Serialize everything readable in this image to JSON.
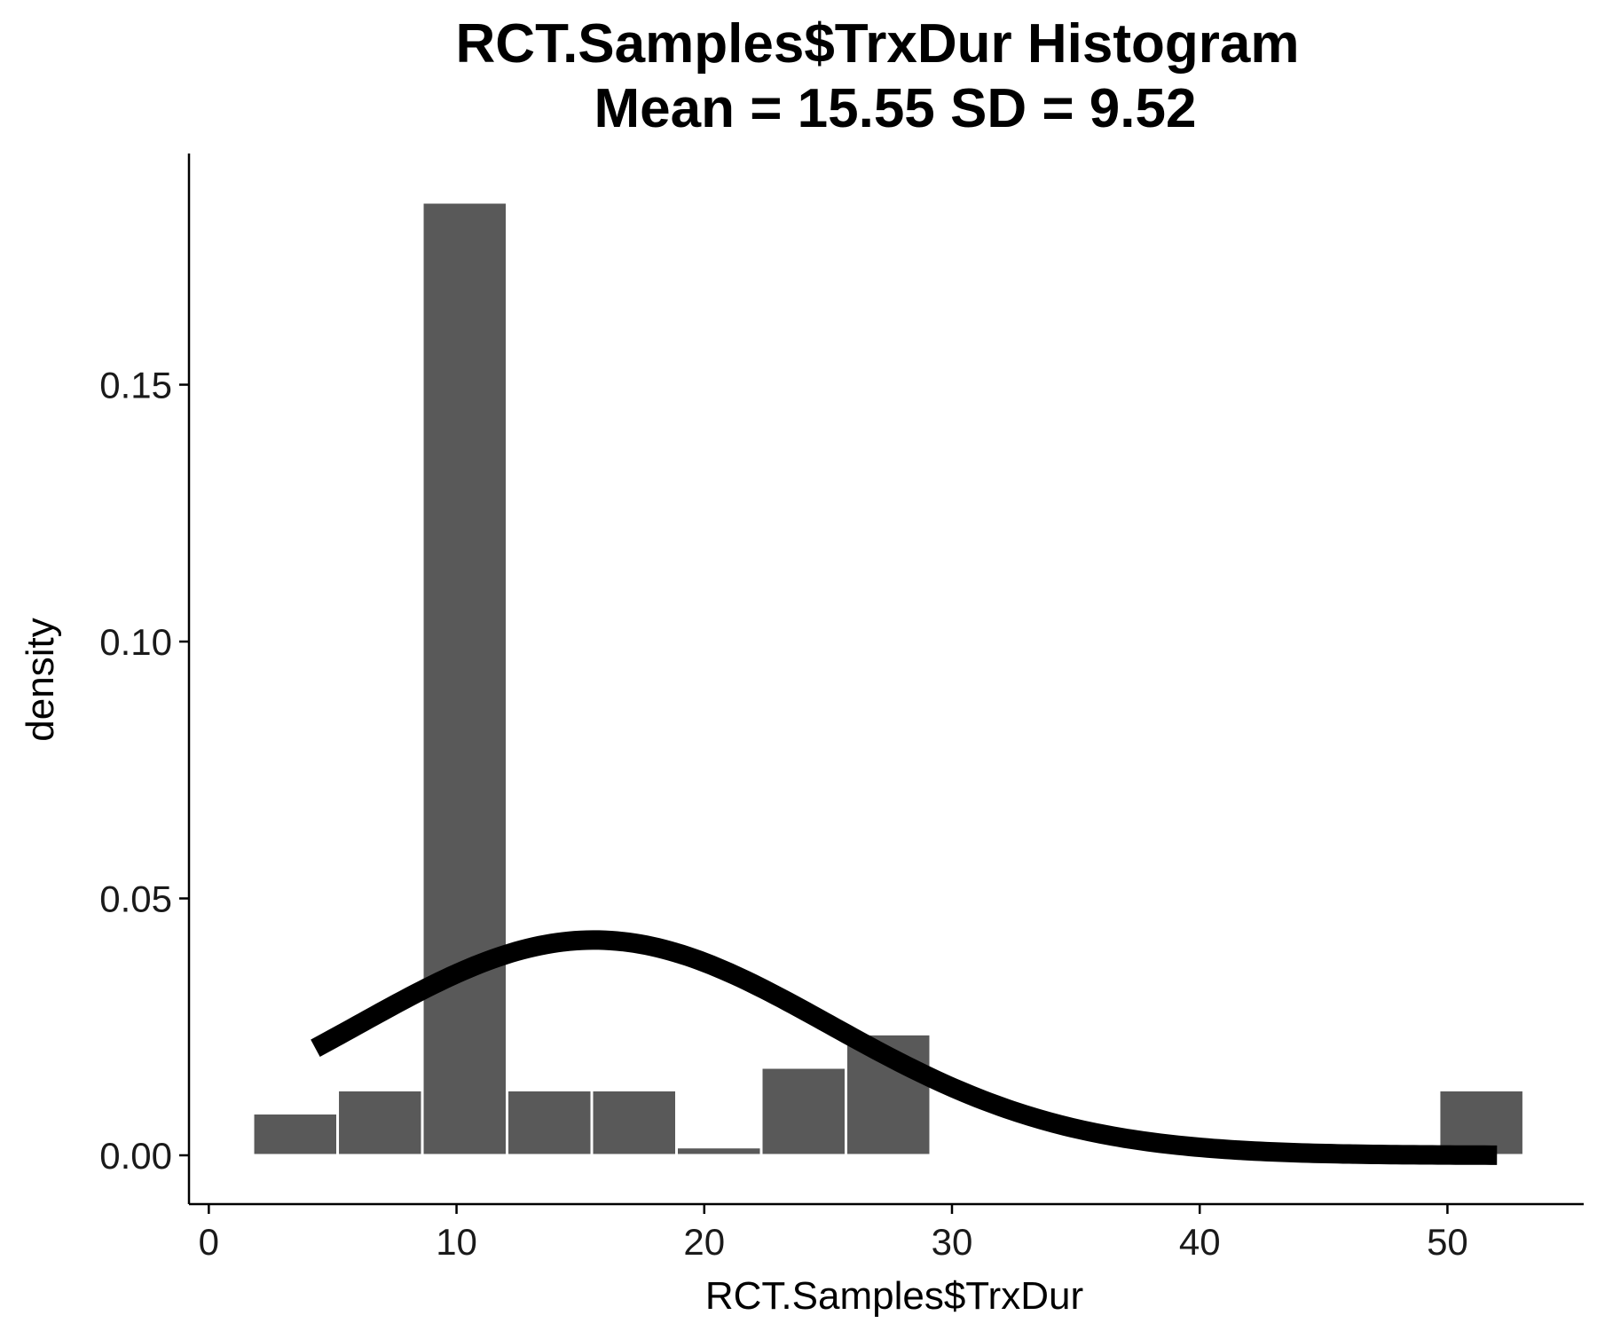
{
  "chart_data": {
    "type": "bar",
    "title": "RCT.Samples$TrxDur Histogram",
    "subtitle": "Mean = 15.55 SD = 9.52",
    "xlabel": "RCT.Samples$TrxDur",
    "ylabel": "density",
    "xlim": [
      -0.8,
      55.5
    ],
    "ylim": [
      -0.0095,
      0.195
    ],
    "x_ticks": [
      0,
      10,
      20,
      30,
      40,
      50
    ],
    "x_tick_labels": [
      "0",
      "10",
      "20",
      "30",
      "40",
      "50"
    ],
    "y_ticks": [
      0.0,
      0.05,
      0.1,
      0.15
    ],
    "y_tick_labels": [
      "0.00",
      "0.05",
      "0.10",
      "0.15"
    ],
    "bin_width": 3.42,
    "bins": [
      {
        "x0": 1.78,
        "x1": 5.2,
        "density": 0.0082
      },
      {
        "x0": 5.2,
        "x1": 8.62,
        "density": 0.0127
      },
      {
        "x0": 8.62,
        "x1": 12.04,
        "density": 0.1855
      },
      {
        "x0": 12.04,
        "x1": 15.46,
        "density": 0.0127
      },
      {
        "x0": 15.46,
        "x1": 18.88,
        "density": 0.0127
      },
      {
        "x0": 18.88,
        "x1": 22.3,
        "density": 0.0016
      },
      {
        "x0": 22.3,
        "x1": 25.72,
        "density": 0.0171
      },
      {
        "x0": 25.72,
        "x1": 29.14,
        "density": 0.0236
      },
      {
        "x0": 49.66,
        "x1": 53.08,
        "density": 0.0127
      }
    ],
    "normal_curve": {
      "mean": 15.55,
      "sd": 9.52,
      "x_range": [
        4.3,
        52.0
      ]
    },
    "grid": false,
    "legend": "none",
    "bar_color": "#595959",
    "bar_outline_color": "#ffffff",
    "curve_color": "#000000"
  }
}
